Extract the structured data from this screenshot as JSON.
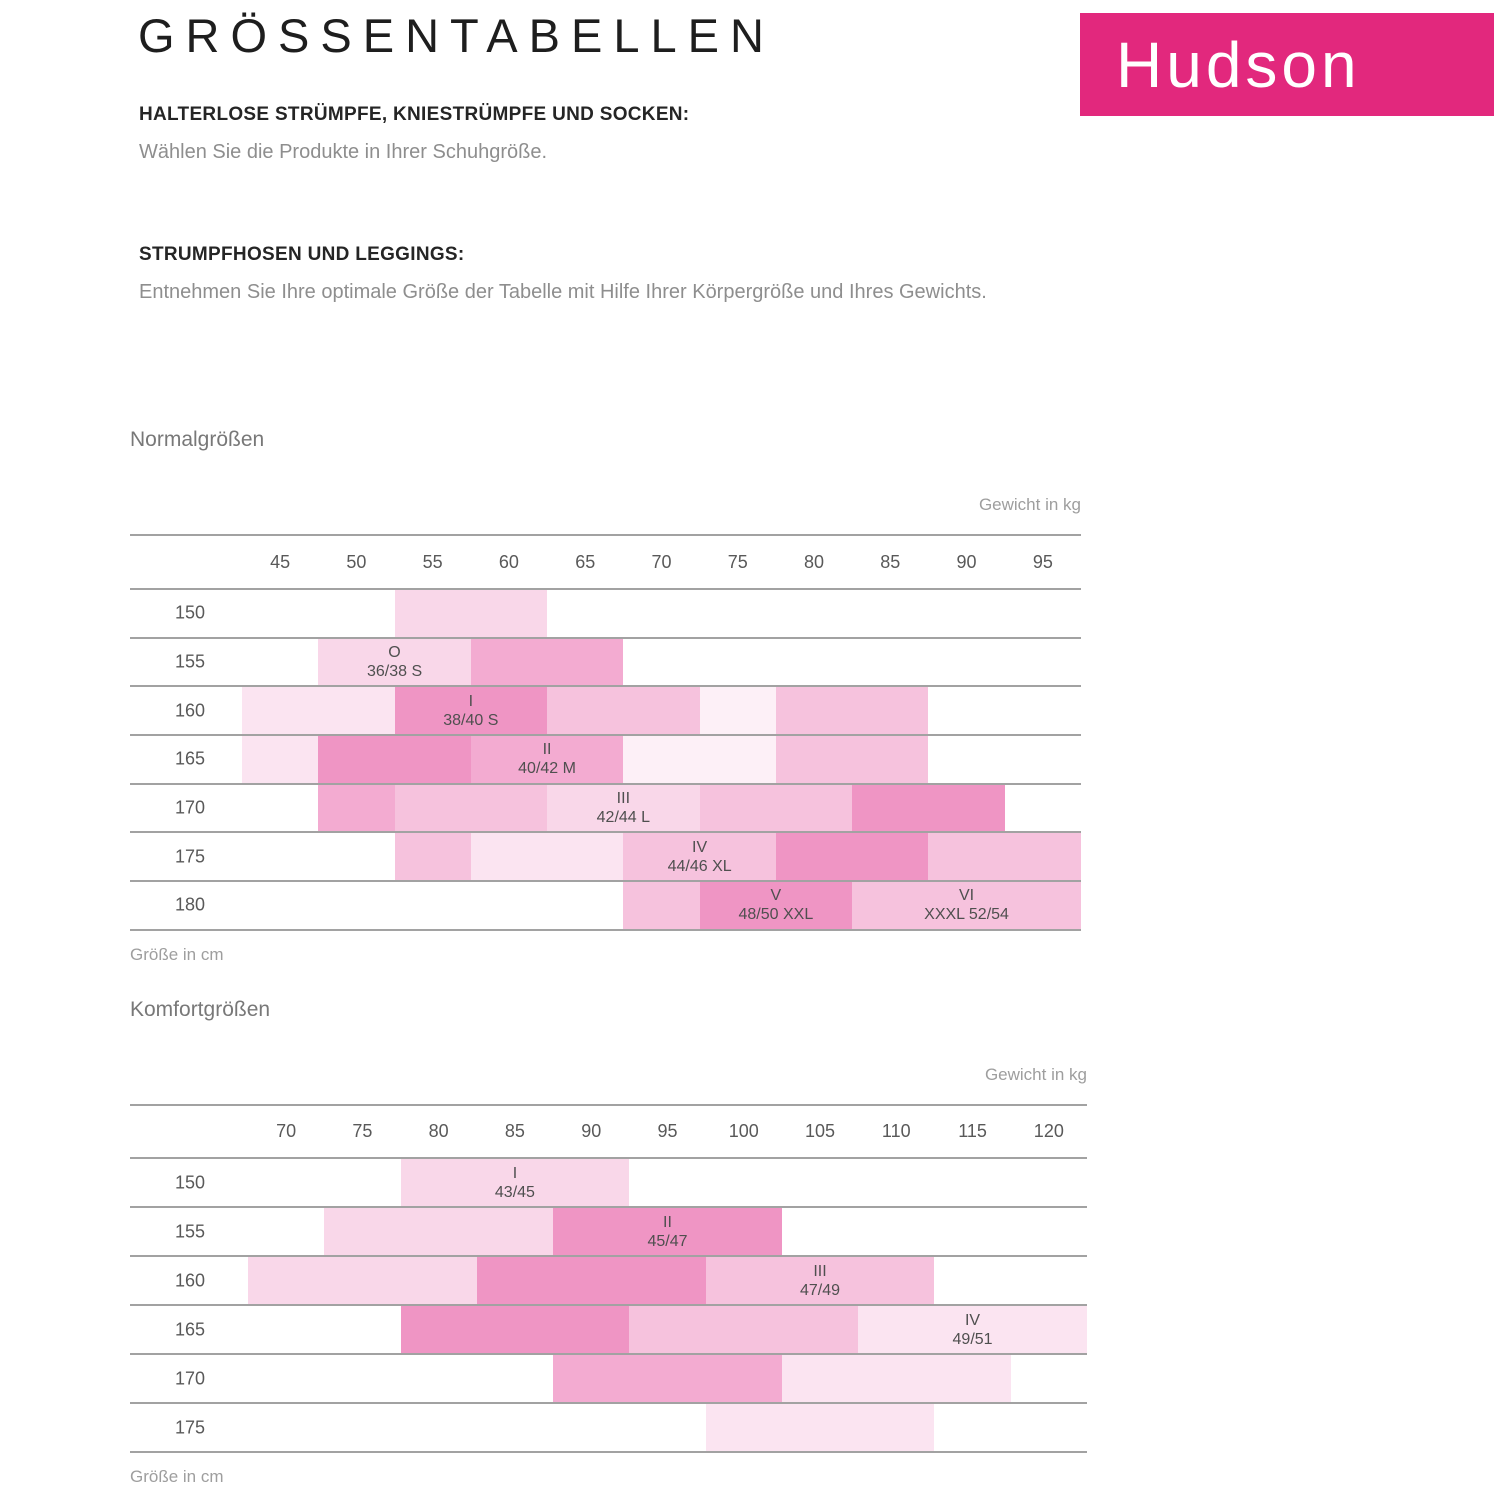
{
  "page": {
    "title": "GRÖSSENTABELLEN",
    "logo_text": "Hudson",
    "logo_bg": "#e2287d",
    "sections": [
      {
        "heading": "HALTERLOSE STRÜMPFE, KNIESTRÜMPFE UND SOCKEN:",
        "body": "Wählen Sie die Produkte in Ihrer Schuhgröße."
      },
      {
        "heading": "STRUMPFHOSEN UND LEGGINGS:",
        "body": "Entnehmen Sie Ihre optimale Größe der Tabelle mit Hilfe Ihrer Körpergröße und Ihres Gewichts."
      }
    ]
  },
  "chart_data": [
    {
      "type": "heatmap",
      "title": "Normalgrößen",
      "unit_label": "Gewicht in kg",
      "axis_label": "Größe in cm",
      "weights": [
        45,
        50,
        55,
        60,
        65,
        70,
        75,
        80,
        85,
        90,
        95
      ],
      "heights": [
        150,
        155,
        160,
        165,
        170,
        175,
        180
      ],
      "palette": {
        "faint": "#fdf0f7",
        "lightest": "#fbe4f1",
        "light": "#f9d7e9",
        "medium": "#f6c2dd",
        "mediumdark": "#f3abd1",
        "dark": "#ef95c4"
      },
      "blocks": [
        {
          "row": 150,
          "from": 55,
          "to": 60,
          "shade": "light"
        },
        {
          "row": 155,
          "from": 50,
          "to": 55,
          "shade": "light",
          "label": [
            "O",
            "36/38 S"
          ]
        },
        {
          "row": 155,
          "from": 60,
          "to": 65,
          "shade": "mediumdark"
        },
        {
          "row": 160,
          "from": 45,
          "to": 50,
          "shade": "lightest"
        },
        {
          "row": 160,
          "from": 55,
          "to": 60,
          "shade": "dark",
          "label": [
            "I",
            "38/40 S"
          ]
        },
        {
          "row": 160,
          "from": 65,
          "to": 70,
          "shade": "medium"
        },
        {
          "row": 160,
          "from": 75,
          "to": 75,
          "shade": "faint"
        },
        {
          "row": 160,
          "from": 80,
          "to": 85,
          "shade": "medium"
        },
        {
          "row": 165,
          "from": 45,
          "to": 45,
          "shade": "lightest"
        },
        {
          "row": 165,
          "from": 50,
          "to": 55,
          "shade": "dark"
        },
        {
          "row": 165,
          "from": 60,
          "to": 65,
          "shade": "mediumdark",
          "label": [
            "II",
            "40/42 M"
          ]
        },
        {
          "row": 165,
          "from": 70,
          "to": 75,
          "shade": "faint"
        },
        {
          "row": 165,
          "from": 80,
          "to": 85,
          "shade": "medium"
        },
        {
          "row": 170,
          "from": 50,
          "to": 50,
          "shade": "mediumdark"
        },
        {
          "row": 170,
          "from": 55,
          "to": 60,
          "shade": "medium"
        },
        {
          "row": 170,
          "from": 65,
          "to": 70,
          "shade": "light",
          "label": [
            "III",
            "42/44 L"
          ]
        },
        {
          "row": 170,
          "from": 75,
          "to": 80,
          "shade": "medium"
        },
        {
          "row": 170,
          "from": 85,
          "to": 90,
          "shade": "dark"
        },
        {
          "row": 175,
          "from": 55,
          "to": 55,
          "shade": "medium"
        },
        {
          "row": 175,
          "from": 60,
          "to": 65,
          "shade": "lightest"
        },
        {
          "row": 175,
          "from": 70,
          "to": 75,
          "shade": "medium",
          "label": [
            "IV",
            "44/46 XL"
          ]
        },
        {
          "row": 175,
          "from": 80,
          "to": 85,
          "shade": "dark"
        },
        {
          "row": 175,
          "from": 90,
          "to": 95,
          "shade": "medium"
        },
        {
          "row": 180,
          "from": 70,
          "to": 70,
          "shade": "medium"
        },
        {
          "row": 180,
          "from": 75,
          "to": 80,
          "shade": "dark",
          "label": [
            "V",
            "48/50 XXL"
          ]
        },
        {
          "row": 180,
          "from": 85,
          "to": 95,
          "shade": "medium",
          "label": [
            "VI",
            "XXXL 52/54"
          ]
        }
      ]
    },
    {
      "type": "heatmap",
      "title": "Komfortgrößen",
      "unit_label": "Gewicht in kg",
      "axis_label": "Größe in cm",
      "weights": [
        70,
        75,
        80,
        85,
        90,
        95,
        100,
        105,
        110,
        115,
        120
      ],
      "heights": [
        150,
        155,
        160,
        165,
        170,
        175
      ],
      "palette": {
        "faint": "#fdf0f7",
        "lightest": "#fbe4f1",
        "light": "#f9d7e9",
        "medium": "#f6c2dd",
        "mediumdark": "#f3abd1",
        "dark": "#ef95c4"
      },
      "blocks": [
        {
          "row": 150,
          "from": 80,
          "to": 90,
          "shade": "light",
          "label": [
            "I",
            "43/45"
          ]
        },
        {
          "row": 155,
          "from": 75,
          "to": 85,
          "shade": "light"
        },
        {
          "row": 155,
          "from": 90,
          "to": 100,
          "shade": "dark",
          "label": [
            "II",
            "45/47"
          ]
        },
        {
          "row": 160,
          "from": 70,
          "to": 80,
          "shade": "light"
        },
        {
          "row": 160,
          "from": 85,
          "to": 95,
          "shade": "dark"
        },
        {
          "row": 160,
          "from": 100,
          "to": 110,
          "shade": "medium",
          "label": [
            "III",
            "47/49"
          ]
        },
        {
          "row": 165,
          "from": 80,
          "to": 90,
          "shade": "dark"
        },
        {
          "row": 165,
          "from": 95,
          "to": 105,
          "shade": "medium"
        },
        {
          "row": 165,
          "from": 110,
          "to": 120,
          "shade": "lightest",
          "label": [
            "IV",
            "49/51"
          ]
        },
        {
          "row": 170,
          "from": 90,
          "to": 100,
          "shade": "mediumdark"
        },
        {
          "row": 170,
          "from": 105,
          "to": 115,
          "shade": "lightest"
        },
        {
          "row": 175,
          "from": 100,
          "to": 110,
          "shade": "lightest"
        }
      ]
    }
  ]
}
